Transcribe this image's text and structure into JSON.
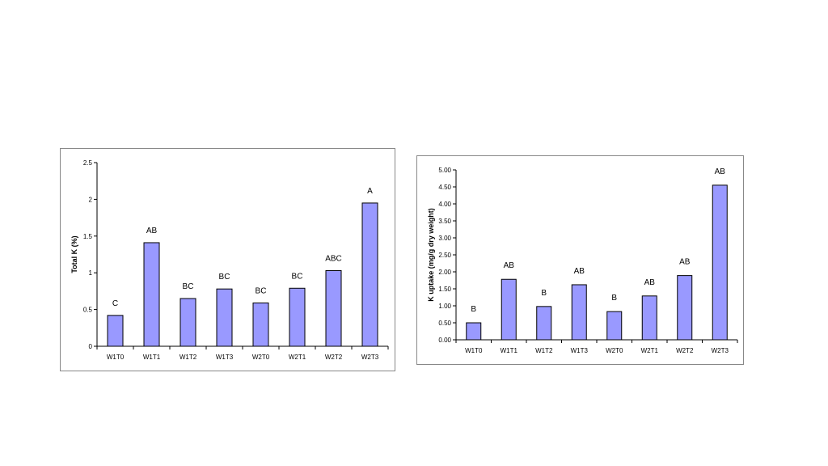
{
  "chart_data": [
    {
      "type": "bar",
      "ylabel": "Total K (%)",
      "xlabel": "",
      "categories": [
        "W1T0",
        "W1T1",
        "W1T2",
        "W1T3",
        "W2T0",
        "W2T1",
        "W2T2",
        "W2T3"
      ],
      "values": [
        0.42,
        1.41,
        0.65,
        0.78,
        0.59,
        0.79,
        1.03,
        1.95
      ],
      "annotations": [
        "C",
        "AB",
        "BC",
        "BC",
        "BC",
        "BC",
        "ABC",
        "A"
      ],
      "ylim": [
        0,
        2.5
      ],
      "yticks": [
        "0",
        "0.5",
        "1",
        "1.5",
        "2",
        "2.5"
      ],
      "grid": false,
      "bar_color": "#9999ff"
    },
    {
      "type": "bar",
      "ylabel": "K uptake (mg/g dry weight)",
      "xlabel": "",
      "categories": [
        "W1T0",
        "W1T1",
        "W1T2",
        "W1T3",
        "W2T0",
        "W2T1",
        "W2T2",
        "W2T3"
      ],
      "values": [
        0.5,
        1.78,
        0.98,
        1.62,
        0.83,
        1.29,
        1.89,
        4.55
      ],
      "annotations": [
        "B",
        "AB",
        "B",
        "AB",
        "B",
        "AB",
        "AB",
        "AB"
      ],
      "ylim": [
        0,
        5
      ],
      "yticks": [
        "0.00",
        "0.50",
        "1.00",
        "1.50",
        "2.00",
        "2.50",
        "3.00",
        "3.50",
        "4.00",
        "4.50",
        "5.00"
      ],
      "grid": false,
      "bar_color": "#9999ff"
    }
  ]
}
